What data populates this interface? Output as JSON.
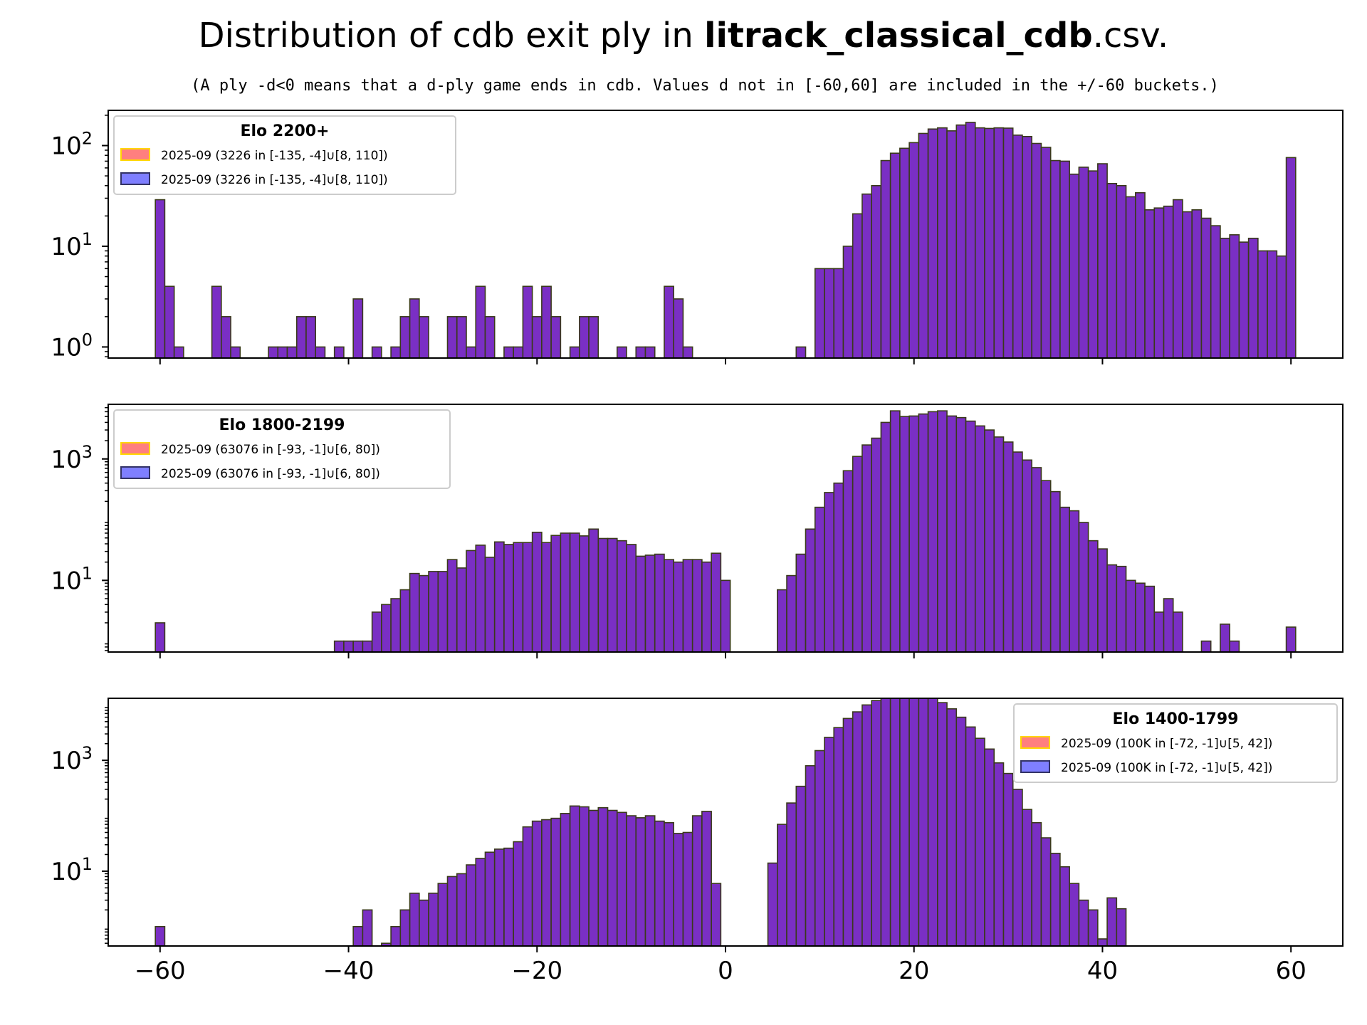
{
  "title": {
    "prefix": "Distribution of cdb exit ply in ",
    "bold": "litrack_classical_cdb",
    "suffix": ".csv."
  },
  "subtitle": "(A ply -d<0 means that a d-ply game ends in cdb. Values d not in [-60,60] are included in the +/-60 buckets.)",
  "colors": {
    "bar_fill": "#7a2fc4",
    "bar_edge": "#3a3a1a",
    "legend_red_fill": "#ff7f7f",
    "legend_red_edge": "#ffd700",
    "legend_blue_fill": "#7f7fff",
    "legend_blue_edge": "#333366"
  },
  "chart_data": [
    {
      "type": "bar",
      "scale": "log",
      "xlim": [
        -65.5,
        65.5
      ],
      "ylim_log10": [
        -0.11,
        2.35
      ],
      "xticks": [
        -60,
        -40,
        -20,
        0,
        20,
        40,
        60
      ],
      "show_xtick_labels": false,
      "yticks": [
        {
          "exp": 0,
          "label": "10",
          "sup": "0"
        },
        {
          "exp": 1,
          "label": "10",
          "sup": "1"
        },
        {
          "exp": 2,
          "label": "10",
          "sup": "2"
        }
      ],
      "legend": {
        "title": "Elo 2200+",
        "placement": "top-left",
        "entries": [
          {
            "label": "2025-09   (3226 in [-135, -4]∪[8, 110])",
            "color": "red"
          },
          {
            "label": "2025-09   (3226 in [-135, -4]∪[8, 110])",
            "color": "blue"
          }
        ]
      },
      "bins": [
        [
          -60,
          29
        ],
        [
          -59,
          4
        ],
        [
          -58,
          1
        ],
        [
          -54,
          4
        ],
        [
          -53,
          2
        ],
        [
          -52,
          1
        ],
        [
          -48,
          1
        ],
        [
          -47,
          1
        ],
        [
          -46,
          1
        ],
        [
          -45,
          2
        ],
        [
          -44,
          2
        ],
        [
          -43,
          1
        ],
        [
          -41,
          1
        ],
        [
          -39,
          3
        ],
        [
          -37,
          1
        ],
        [
          -35,
          1
        ],
        [
          -34,
          2
        ],
        [
          -33,
          3
        ],
        [
          -32,
          2
        ],
        [
          -29,
          2
        ],
        [
          -28,
          2
        ],
        [
          -27,
          1
        ],
        [
          -26,
          4
        ],
        [
          -25,
          2
        ],
        [
          -23,
          1
        ],
        [
          -22,
          1
        ],
        [
          -21,
          4
        ],
        [
          -20,
          2
        ],
        [
          -19,
          4
        ],
        [
          -18,
          2
        ],
        [
          -16,
          1
        ],
        [
          -15,
          2
        ],
        [
          -14,
          2
        ],
        [
          -11,
          1
        ],
        [
          -9,
          1
        ],
        [
          -8,
          1
        ],
        [
          -6,
          4
        ],
        [
          -5,
          3
        ],
        [
          -4,
          1
        ],
        [
          8,
          1
        ],
        [
          10,
          6
        ],
        [
          11,
          6
        ],
        [
          12,
          6
        ],
        [
          13,
          10
        ],
        [
          14,
          21
        ],
        [
          15,
          33
        ],
        [
          16,
          40
        ],
        [
          17,
          71
        ],
        [
          18,
          84
        ],
        [
          19,
          94
        ],
        [
          20,
          107
        ],
        [
          21,
          132
        ],
        [
          22,
          146
        ],
        [
          23,
          150
        ],
        [
          24,
          140
        ],
        [
          25,
          160
        ],
        [
          26,
          170
        ],
        [
          27,
          150
        ],
        [
          28,
          148
        ],
        [
          29,
          150
        ],
        [
          30,
          149
        ],
        [
          31,
          127
        ],
        [
          32,
          123
        ],
        [
          33,
          105
        ],
        [
          34,
          96
        ],
        [
          35,
          71
        ],
        [
          36,
          70
        ],
        [
          37,
          52
        ],
        [
          38,
          61
        ],
        [
          39,
          56
        ],
        [
          40,
          66
        ],
        [
          41,
          42
        ],
        [
          42,
          40
        ],
        [
          43,
          31
        ],
        [
          44,
          34
        ],
        [
          45,
          23
        ],
        [
          46,
          24
        ],
        [
          47,
          25
        ],
        [
          48,
          29
        ],
        [
          49,
          22
        ],
        [
          50,
          23
        ],
        [
          51,
          19
        ],
        [
          52,
          16
        ],
        [
          53,
          12
        ],
        [
          54,
          13
        ],
        [
          55,
          11
        ],
        [
          56,
          12
        ],
        [
          57,
          9
        ],
        [
          58,
          9
        ],
        [
          59,
          8
        ],
        [
          60,
          76
        ]
      ]
    },
    {
      "type": "bar",
      "scale": "log",
      "xlim": [
        -65.5,
        65.5
      ],
      "ylim_log10": [
        -0.18,
        3.9
      ],
      "xticks": [
        -60,
        -40,
        -20,
        0,
        20,
        40,
        60
      ],
      "show_xtick_labels": false,
      "yticks": [
        {
          "exp": 1,
          "label": "10",
          "sup": "1"
        },
        {
          "exp": 3,
          "label": "10",
          "sup": "3"
        }
      ],
      "legend": {
        "title": "Elo 1800-2199",
        "placement": "top-left",
        "entries": [
          {
            "label": "2025-09   (63076 in [-93, -1]∪[6, 80])",
            "color": "red"
          },
          {
            "label": "2025-09   (63076 in [-93, -1]∪[6, 80])",
            "color": "blue"
          }
        ]
      },
      "bins": [
        [
          -60,
          2
        ],
        [
          -41,
          1
        ],
        [
          -40,
          1
        ],
        [
          -39,
          1
        ],
        [
          -38,
          1
        ],
        [
          -37,
          3
        ],
        [
          -36,
          4
        ],
        [
          -35,
          5
        ],
        [
          -34,
          7
        ],
        [
          -33,
          13
        ],
        [
          -32,
          12
        ],
        [
          -31,
          14
        ],
        [
          -30,
          14
        ],
        [
          -29,
          22
        ],
        [
          -28,
          16
        ],
        [
          -27,
          31
        ],
        [
          -26,
          38
        ],
        [
          -25,
          24
        ],
        [
          -24,
          43
        ],
        [
          -23,
          39
        ],
        [
          -22,
          42
        ],
        [
          -21,
          42
        ],
        [
          -20,
          62
        ],
        [
          -19,
          42
        ],
        [
          -18,
          55
        ],
        [
          -17,
          60
        ],
        [
          -16,
          60
        ],
        [
          -15,
          54
        ],
        [
          -14,
          70
        ],
        [
          -13,
          49
        ],
        [
          -12,
          49
        ],
        [
          -11,
          45
        ],
        [
          -10,
          39
        ],
        [
          -9,
          25
        ],
        [
          -8,
          26
        ],
        [
          -7,
          27
        ],
        [
          -6,
          22
        ],
        [
          -5,
          20
        ],
        [
          -4,
          22
        ],
        [
          -3,
          22
        ],
        [
          -2,
          20
        ],
        [
          -1,
          28
        ],
        [
          0,
          10
        ],
        [
          6,
          7
        ],
        [
          7,
          12
        ],
        [
          8,
          27
        ],
        [
          9,
          70
        ],
        [
          10,
          160
        ],
        [
          11,
          280
        ],
        [
          12,
          400
        ],
        [
          13,
          640
        ],
        [
          14,
          1100
        ],
        [
          15,
          1700
        ],
        [
          16,
          2200
        ],
        [
          17,
          4000
        ],
        [
          18,
          6200
        ],
        [
          19,
          5000
        ],
        [
          20,
          5100
        ],
        [
          21,
          5500
        ],
        [
          22,
          6000
        ],
        [
          23,
          6200
        ],
        [
          24,
          5100
        ],
        [
          25,
          4800
        ],
        [
          26,
          4200
        ],
        [
          27,
          3500
        ],
        [
          28,
          3000
        ],
        [
          29,
          2300
        ],
        [
          30,
          1900
        ],
        [
          31,
          1300
        ],
        [
          32,
          960
        ],
        [
          33,
          720
        ],
        [
          34,
          440
        ],
        [
          35,
          290
        ],
        [
          36,
          160
        ],
        [
          37,
          140
        ],
        [
          38,
          90
        ],
        [
          39,
          45
        ],
        [
          40,
          33
        ],
        [
          41,
          18
        ],
        [
          42,
          17
        ],
        [
          43,
          10
        ],
        [
          44,
          9
        ],
        [
          45,
          8
        ],
        [
          46,
          3
        ],
        [
          47,
          5
        ],
        [
          48,
          3
        ],
        [
          49,
          0.5
        ],
        [
          50,
          0.5
        ],
        [
          51,
          1
        ],
        [
          52,
          0.5
        ],
        [
          53,
          1.9
        ],
        [
          54,
          1
        ],
        [
          56,
          0.5
        ],
        [
          57,
          0.5
        ],
        [
          60,
          1.7
        ]
      ]
    },
    {
      "type": "bar",
      "scale": "log",
      "xlim": [
        -65.5,
        65.5
      ],
      "ylim_log10": [
        -0.35,
        4.12
      ],
      "xticks": [
        -60,
        -40,
        -20,
        0,
        20,
        40,
        60
      ],
      "show_xtick_labels": true,
      "xtick_labels": [
        "−60",
        "−40",
        "−20",
        "0",
        "20",
        "40",
        "60"
      ],
      "yticks": [
        {
          "exp": 1,
          "label": "10",
          "sup": "1"
        },
        {
          "exp": 3,
          "label": "10",
          "sup": "3"
        }
      ],
      "legend": {
        "title": "Elo 1400-1799",
        "placement": "top-right",
        "entries": [
          {
            "label": "2025-09   (100K in [-72, -1]∪[5, 42])",
            "color": "red"
          },
          {
            "label": "2025-09   (100K in [-72, -1]∪[5, 42])",
            "color": "blue"
          }
        ]
      },
      "bins": [
        [
          -60,
          1
        ],
        [
          -39,
          1
        ],
        [
          -38,
          2
        ],
        [
          -36,
          0.5
        ],
        [
          -35,
          1
        ],
        [
          -34,
          2
        ],
        [
          -33,
          4
        ],
        [
          -32,
          3
        ],
        [
          -31,
          4
        ],
        [
          -30,
          6
        ],
        [
          -29,
          8
        ],
        [
          -28,
          9
        ],
        [
          -27,
          13
        ],
        [
          -26,
          17
        ],
        [
          -25,
          22
        ],
        [
          -24,
          25
        ],
        [
          -23,
          26
        ],
        [
          -22,
          34
        ],
        [
          -21,
          63
        ],
        [
          -20,
          80
        ],
        [
          -19,
          85
        ],
        [
          -18,
          90
        ],
        [
          -17,
          110
        ],
        [
          -16,
          150
        ],
        [
          -15,
          145
        ],
        [
          -14,
          125
        ],
        [
          -13,
          140
        ],
        [
          -12,
          125
        ],
        [
          -11,
          115
        ],
        [
          -10,
          100
        ],
        [
          -9,
          92
        ],
        [
          -8,
          100
        ],
        [
          -7,
          80
        ],
        [
          -6,
          75
        ],
        [
          -5,
          48
        ],
        [
          -4,
          50
        ],
        [
          -3,
          100
        ],
        [
          -2,
          120
        ],
        [
          -1,
          6
        ],
        [
          5,
          14
        ],
        [
          6,
          70
        ],
        [
          7,
          170
        ],
        [
          8,
          340
        ],
        [
          9,
          800
        ],
        [
          10,
          1500
        ],
        [
          11,
          2600
        ],
        [
          12,
          3900
        ],
        [
          13,
          5700
        ],
        [
          14,
          7500
        ],
        [
          15,
          10000
        ],
        [
          16,
          12000
        ],
        [
          17,
          15000
        ],
        [
          18,
          21000
        ],
        [
          19,
          17000
        ],
        [
          20,
          15000
        ],
        [
          21,
          14800
        ],
        [
          22,
          14500
        ],
        [
          23,
          11000
        ],
        [
          24,
          8500
        ],
        [
          25,
          6000
        ],
        [
          26,
          4000
        ],
        [
          27,
          2500
        ],
        [
          28,
          1600
        ],
        [
          29,
          900
        ],
        [
          30,
          580
        ],
        [
          31,
          300
        ],
        [
          32,
          130
        ],
        [
          33,
          75
        ],
        [
          34,
          40
        ],
        [
          35,
          21
        ],
        [
          36,
          12
        ],
        [
          37,
          6
        ],
        [
          38,
          3
        ],
        [
          39,
          2
        ],
        [
          40,
          0.6
        ],
        [
          41,
          3.3
        ],
        [
          42,
          2.1
        ]
      ]
    }
  ]
}
